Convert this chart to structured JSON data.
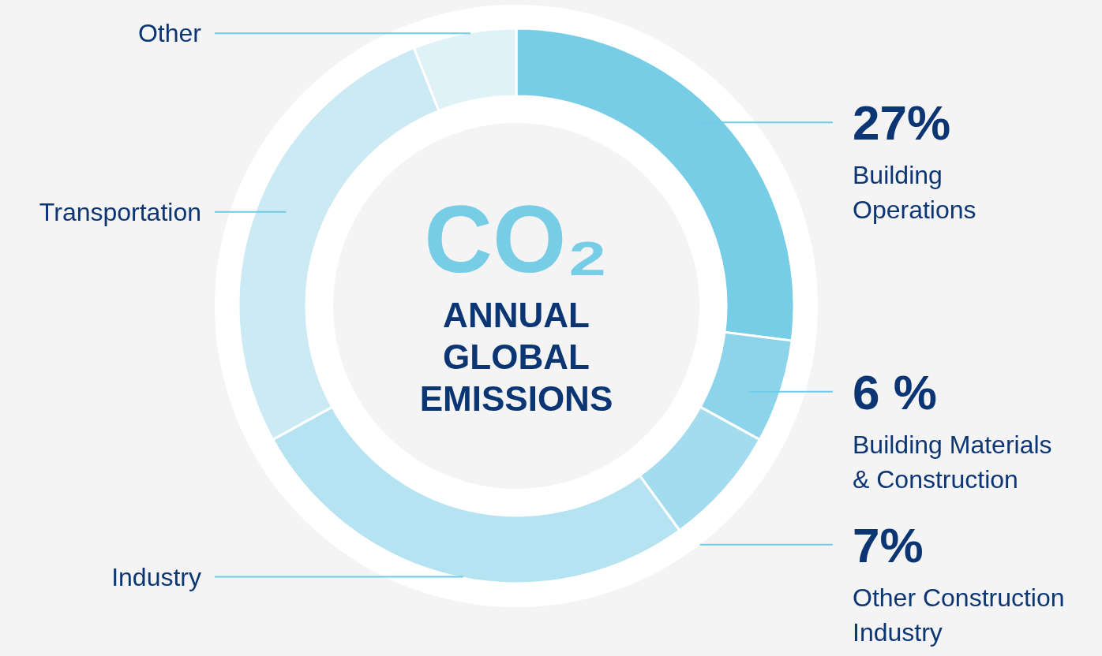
{
  "chart_data": {
    "type": "donut",
    "title": "ANNUAL GLOBAL EMISSIONS",
    "annotations": [
      "CO₂"
    ],
    "categories": [
      "Building Operations",
      "Building Materials & Construction",
      "Other Construction Industry",
      "Industry",
      "Transportation",
      "Other"
    ],
    "values": [
      27,
      6,
      7,
      27,
      27,
      6
    ],
    "colors": [
      "#78cde6",
      "#8dd4eb",
      "#a3dcee",
      "#b5e3f1",
      "#cbeaf4",
      "#def2f8"
    ],
    "value_labels": [
      "27%",
      "6 %",
      "7%",
      null,
      null,
      null
    ],
    "legend": false
  }
}
